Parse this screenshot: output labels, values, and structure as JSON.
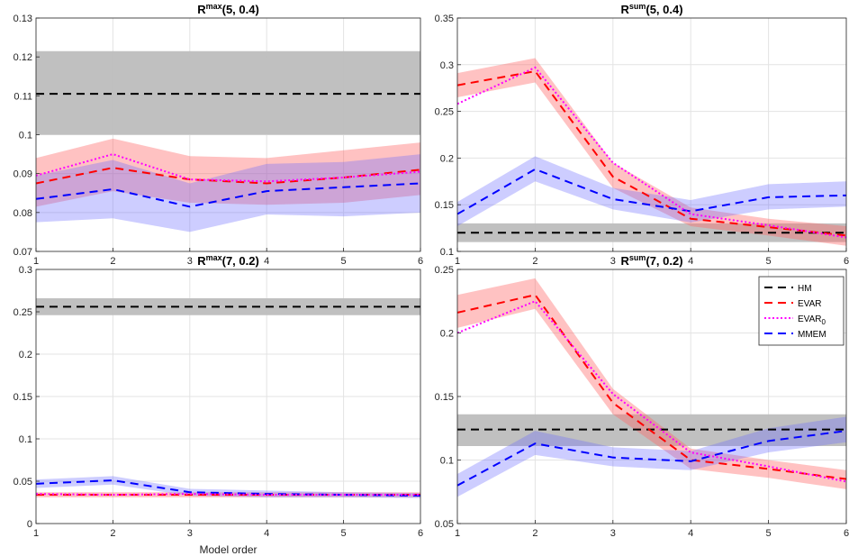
{
  "chart_data": [
    {
      "type": "line",
      "title": "R",
      "title_sup": "max",
      "title_args": "(5, 0.4)",
      "xlabel": "",
      "ylabel": "",
      "xlim": [
        1,
        6
      ],
      "ylim": [
        0.07,
        0.13
      ],
      "xticks": [
        "1",
        "2",
        "3",
        "4",
        "5",
        "6"
      ],
      "yticks": [
        "0.07",
        "0.08",
        "0.09",
        "0.1",
        "0.11",
        "0.12",
        "0.13"
      ],
      "grid": true,
      "x": [
        1,
        2,
        3,
        4,
        5,
        6
      ],
      "series": [
        {
          "name": "HM",
          "values": [
            0.1105,
            0.1105,
            0.1105,
            0.1105,
            0.1105,
            0.1105
          ],
          "lower": [
            0.1,
            0.1,
            0.1,
            0.1,
            0.1,
            0.1
          ],
          "upper": [
            0.1215,
            0.1215,
            0.1215,
            0.1215,
            0.1215,
            0.1215
          ]
        },
        {
          "name": "EVAR",
          "values": [
            0.0875,
            0.0915,
            0.0885,
            0.0875,
            0.089,
            0.091
          ],
          "lower": [
            0.0815,
            0.0855,
            0.0825,
            0.082,
            0.0825,
            0.0845
          ],
          "upper": [
            0.094,
            0.099,
            0.0945,
            0.094,
            0.096,
            0.098
          ]
        },
        {
          "name": "EVAR",
          "name_sub": "0",
          "values": [
            0.0895,
            0.095,
            0.0885,
            0.088,
            0.089,
            0.0905
          ]
        },
        {
          "name": "MMEM",
          "values": [
            0.0835,
            0.086,
            0.0815,
            0.0855,
            0.0865,
            0.0875
          ],
          "lower": [
            0.0775,
            0.0785,
            0.075,
            0.0795,
            0.079,
            0.08
          ],
          "upper": [
            0.0895,
            0.0935,
            0.0875,
            0.0925,
            0.093,
            0.095
          ]
        }
      ]
    },
    {
      "type": "line",
      "title": "R",
      "title_sup": "sum",
      "title_args": "(5, 0.4)",
      "xlabel": "",
      "ylabel": "",
      "xlim": [
        1,
        6
      ],
      "ylim": [
        0.1,
        0.35
      ],
      "xticks": [
        "1",
        "2",
        "3",
        "4",
        "5",
        "6"
      ],
      "yticks": [
        "0.1",
        "0.15",
        "0.2",
        "0.25",
        "0.3",
        "0.35"
      ],
      "grid": true,
      "x": [
        1,
        2,
        3,
        4,
        5,
        6
      ],
      "series": [
        {
          "name": "HM",
          "values": [
            0.12,
            0.12,
            0.12,
            0.12,
            0.12,
            0.12
          ],
          "lower": [
            0.11,
            0.11,
            0.11,
            0.11,
            0.11,
            0.11
          ],
          "upper": [
            0.13,
            0.13,
            0.13,
            0.13,
            0.13,
            0.13
          ]
        },
        {
          "name": "EVAR",
          "values": [
            0.278,
            0.293,
            0.18,
            0.135,
            0.126,
            0.117
          ],
          "lower": [
            0.265,
            0.281,
            0.168,
            0.127,
            0.117,
            0.106
          ],
          "upper": [
            0.291,
            0.307,
            0.195,
            0.147,
            0.135,
            0.127
          ]
        },
        {
          "name": "EVAR",
          "name_sub": "0",
          "values": [
            0.258,
            0.297,
            0.195,
            0.14,
            0.128,
            0.115
          ]
        },
        {
          "name": "MMEM",
          "values": [
            0.14,
            0.188,
            0.156,
            0.143,
            0.158,
            0.16
          ],
          "lower": [
            0.127,
            0.175,
            0.145,
            0.131,
            0.145,
            0.148
          ],
          "upper": [
            0.153,
            0.202,
            0.168,
            0.155,
            0.172,
            0.175
          ]
        }
      ]
    },
    {
      "type": "line",
      "title": "R",
      "title_sup": "max",
      "title_args": "(7, 0.2)",
      "xlabel": "Model order",
      "ylabel": "",
      "xlim": [
        1,
        6
      ],
      "ylim": [
        0,
        0.3
      ],
      "xticks": [
        "1",
        "2",
        "3",
        "4",
        "5",
        "6"
      ],
      "yticks": [
        "0",
        "0.05",
        "0.1",
        "0.15",
        "0.2",
        "0.25",
        "0.3"
      ],
      "grid": true,
      "x": [
        1,
        2,
        3,
        4,
        5,
        6
      ],
      "series": [
        {
          "name": "HM",
          "values": [
            0.256,
            0.256,
            0.256,
            0.256,
            0.256,
            0.256
          ],
          "lower": [
            0.246,
            0.246,
            0.246,
            0.246,
            0.246,
            0.246
          ],
          "upper": [
            0.266,
            0.266,
            0.266,
            0.266,
            0.266,
            0.266
          ]
        },
        {
          "name": "EVAR",
          "values": [
            0.034,
            0.034,
            0.034,
            0.034,
            0.034,
            0.034
          ],
          "lower": [
            0.031,
            0.031,
            0.031,
            0.031,
            0.031,
            0.031
          ],
          "upper": [
            0.037,
            0.037,
            0.037,
            0.037,
            0.037,
            0.037
          ]
        },
        {
          "name": "EVAR",
          "name_sub": "0",
          "values": [
            0.035,
            0.034,
            0.035,
            0.034,
            0.034,
            0.034
          ]
        },
        {
          "name": "MMEM",
          "values": [
            0.047,
            0.051,
            0.037,
            0.035,
            0.034,
            0.033
          ],
          "lower": [
            0.042,
            0.046,
            0.033,
            0.031,
            0.031,
            0.03
          ],
          "upper": [
            0.052,
            0.056,
            0.041,
            0.039,
            0.037,
            0.036
          ]
        }
      ]
    },
    {
      "type": "line",
      "title": "R",
      "title_sup": "sum",
      "title_args": "(7, 0.2)",
      "xlabel": "",
      "ylabel": "",
      "xlim": [
        1,
        6
      ],
      "ylim": [
        0.05,
        0.25
      ],
      "xticks": [
        "1",
        "2",
        "3",
        "4",
        "5",
        "6"
      ],
      "yticks": [
        "0.05",
        "0.1",
        "0.15",
        "0.2",
        "0.25"
      ],
      "grid": true,
      "legend": "top-right",
      "x": [
        1,
        2,
        3,
        4,
        5,
        6
      ],
      "series": [
        {
          "name": "HM",
          "values": [
            0.124,
            0.124,
            0.124,
            0.124,
            0.124,
            0.124
          ],
          "lower": [
            0.111,
            0.111,
            0.111,
            0.111,
            0.111,
            0.111
          ],
          "upper": [
            0.136,
            0.136,
            0.136,
            0.136,
            0.136,
            0.136
          ]
        },
        {
          "name": "EVAR",
          "values": [
            0.216,
            0.23,
            0.145,
            0.1,
            0.093,
            0.085
          ],
          "lower": [
            0.204,
            0.219,
            0.136,
            0.093,
            0.086,
            0.077
          ],
          "upper": [
            0.23,
            0.243,
            0.156,
            0.109,
            0.1,
            0.092
          ]
        },
        {
          "name": "EVAR",
          "name_sub": "0",
          "values": [
            0.2,
            0.225,
            0.152,
            0.106,
            0.095,
            0.083
          ]
        },
        {
          "name": "MMEM",
          "values": [
            0.08,
            0.113,
            0.102,
            0.099,
            0.115,
            0.123
          ],
          "lower": [
            0.071,
            0.104,
            0.095,
            0.092,
            0.106,
            0.114
          ],
          "upper": [
            0.089,
            0.123,
            0.11,
            0.107,
            0.125,
            0.134
          ]
        }
      ]
    }
  ],
  "legend": {
    "entries": [
      {
        "label": "HM",
        "sub": "",
        "color": "#000000",
        "dash": "dash"
      },
      {
        "label": "EVAR",
        "sub": "",
        "color": "#ff0000",
        "dash": "dash"
      },
      {
        "label": "EVAR",
        "sub": "0",
        "color": "#ff00ff",
        "dash": "dot"
      },
      {
        "label": "MMEM",
        "sub": "",
        "color": "#0000ff",
        "dash": "dash"
      }
    ]
  },
  "colors": {
    "HM": "#000000",
    "EVAR": "#ff0000",
    "EVAR0": "#ff00ff",
    "MMEM": "#0000ff",
    "HM_band": "#bdbdbd",
    "EVAR_band": "#ff6666",
    "MMEM_band": "#6666ff"
  }
}
